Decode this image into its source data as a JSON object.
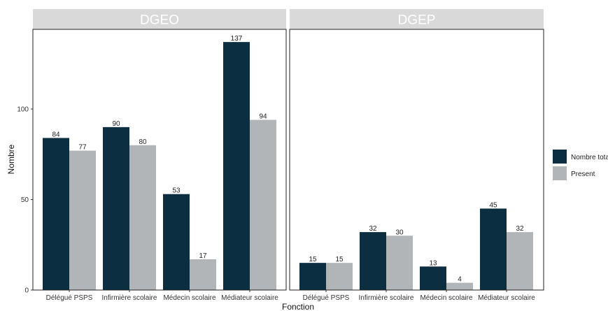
{
  "chart_data": {
    "type": "bar",
    "title": "",
    "xlabel": "Fonction",
    "ylabel": "Nombre",
    "ylim": [
      0,
      144
    ],
    "yticks": [
      0,
      50,
      100
    ],
    "grid": false,
    "legend": {
      "placement": "right",
      "entries": [
        "Nombre tota",
        "Present"
      ]
    },
    "colors": {
      "Nombre tota": "#0b2e40",
      "Present": "#b1b5b8",
      "strip": "#d9d9d9",
      "strip_text": "#ffffff"
    },
    "categories": [
      "Délégué PSPS",
      "Infirmière scolaire",
      "Médecin scolaire",
      "Médiateur scolaire"
    ],
    "panels": [
      {
        "name": "DGEO",
        "series": [
          {
            "name": "Nombre tota",
            "values": [
              84,
              90,
              53,
              137
            ]
          },
          {
            "name": "Present",
            "values": [
              77,
              80,
              17,
              94
            ]
          }
        ]
      },
      {
        "name": "DGEP",
        "series": [
          {
            "name": "Nombre tota",
            "values": [
              15,
              32,
              13,
              45
            ]
          },
          {
            "name": "Present",
            "values": [
              15,
              30,
              4,
              32
            ]
          }
        ]
      }
    ]
  }
}
